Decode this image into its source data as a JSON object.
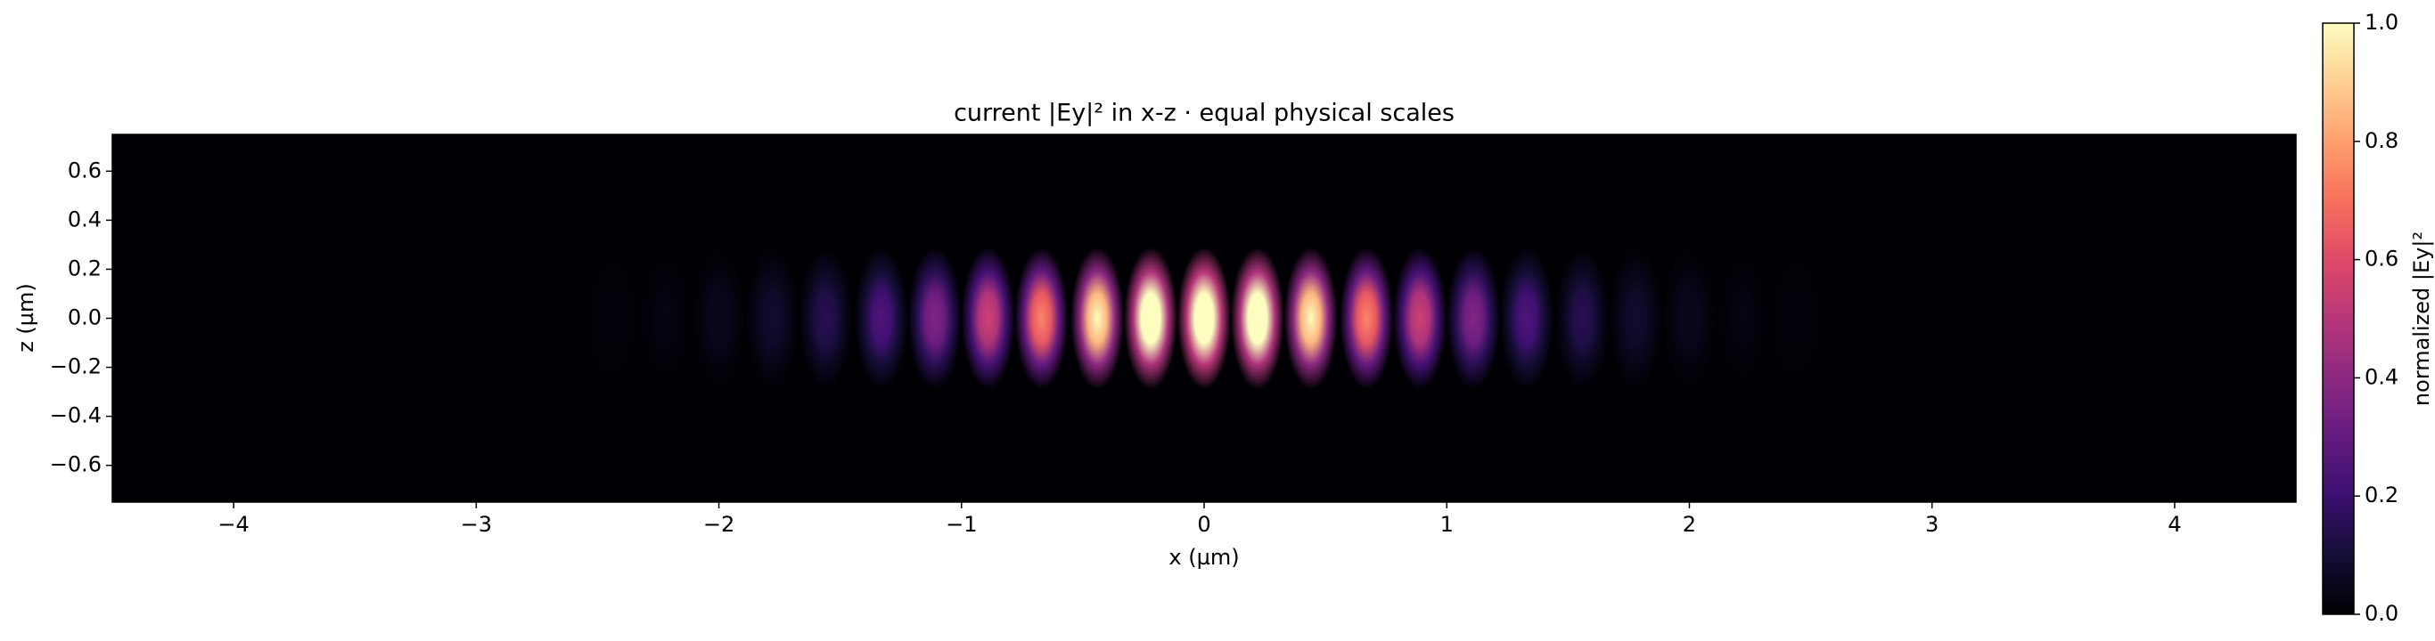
{
  "chart_data": {
    "type": "heatmap",
    "title": "current |Ey|² in x-z · equal physical scales",
    "xlabel": "x (µm)",
    "ylabel": "z (µm)",
    "colorbar_label": "normalized |Ey|²",
    "colormap": "magma",
    "x": [
      -2.44,
      -2.22,
      -2.0,
      -1.78,
      -1.56,
      -1.33,
      -1.11,
      -0.89,
      -0.67,
      -0.44,
      -0.22,
      0,
      0.22,
      0.44,
      0.67,
      0.89,
      1.11,
      1.33,
      1.56,
      1.78,
      2.0,
      2.22,
      2.44
    ],
    "values": [
      0.01,
      0.02,
      0.04,
      0.07,
      0.12,
      0.2,
      0.3,
      0.45,
      0.6,
      0.8,
      0.95,
      1.0,
      0.95,
      0.8,
      0.6,
      0.45,
      0.3,
      0.2,
      0.12,
      0.07,
      0.04,
      0.02,
      0.01
    ],
    "xlim": [
      -4.5,
      4.5
    ],
    "ylim": [
      -0.75,
      0.75
    ],
    "clim": [
      0,
      1
    ],
    "xticks": [
      {
        "value": -4,
        "label": "−4"
      },
      {
        "value": -3,
        "label": "−3"
      },
      {
        "value": -2,
        "label": "−2"
      },
      {
        "value": -1,
        "label": "−1"
      },
      0,
      1,
      2,
      3,
      4
    ],
    "yticks": [
      {
        "value": -0.6,
        "label": "−0.6"
      },
      {
        "value": -0.4,
        "label": "−0.4"
      },
      {
        "value": -0.2,
        "label": "−0.2"
      },
      {
        "value": 0,
        "label": "0.0"
      },
      0.2,
      0.4,
      0.6
    ],
    "cticks": [
      {
        "value": 0,
        "label": "0.0"
      },
      0.2,
      0.4,
      0.6,
      0.8,
      {
        "value": 1,
        "label": "1.0"
      }
    ]
  }
}
